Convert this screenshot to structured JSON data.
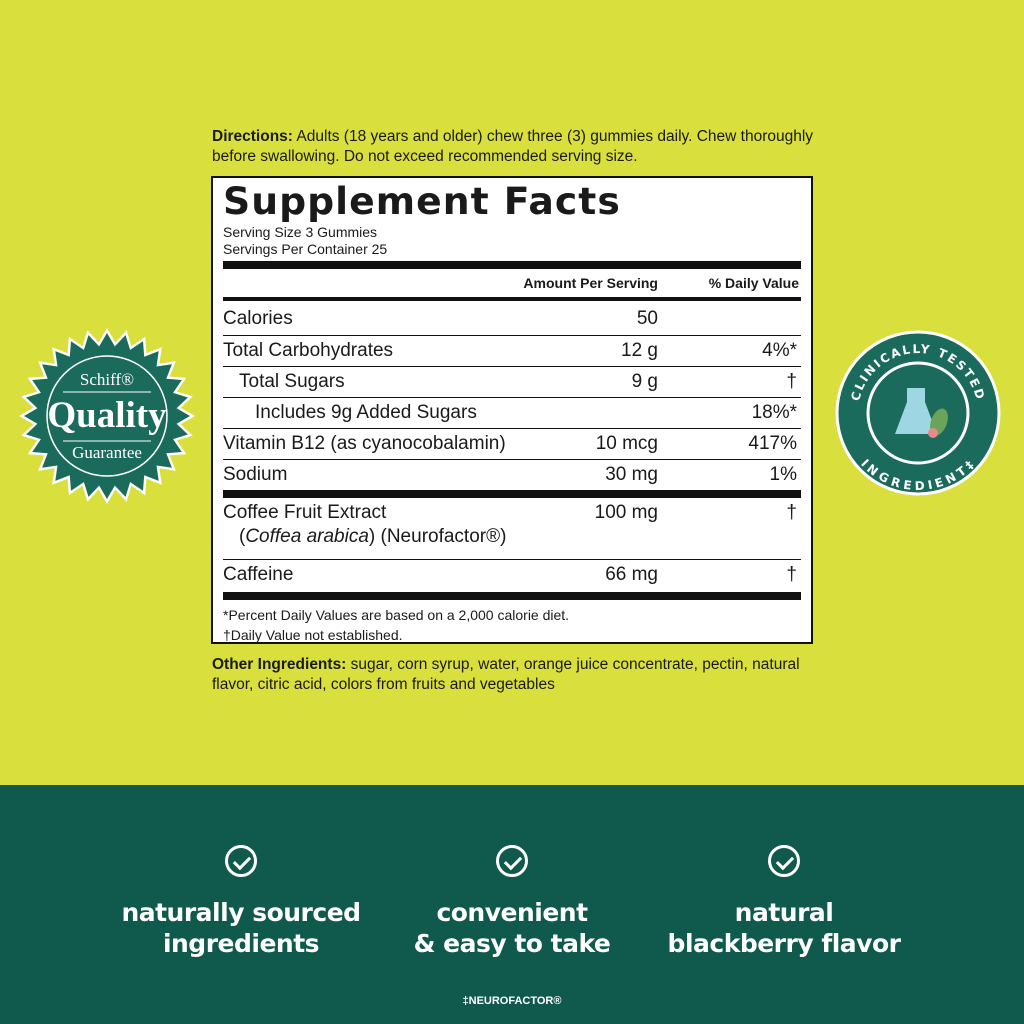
{
  "directions": {
    "label": "Directions:",
    "text": " Adults (18 years and older) chew three (3) gummies daily. Chew thoroughly before swallowing. Do not exceed recommended serving size."
  },
  "facts": {
    "title": "Supplement Facts",
    "serving_size": "Serving Size 3 Gummies",
    "servings_per_container": "Servings Per Container 25",
    "col_amount": "Amount Per Serving",
    "col_dv": "% Daily Value",
    "rows": [
      {
        "name": "Calories",
        "amount": "50",
        "dv": ""
      },
      {
        "name": "Total Carbohydrates",
        "amount": "12 g",
        "dv": "4%*"
      },
      {
        "name": "Total Sugars",
        "amount": "9 g",
        "dv": "†"
      },
      {
        "name": "Includes 9g Added Sugars",
        "amount": "",
        "dv": "18%*"
      },
      {
        "name": "Vitamin B12 (as cyanocobalamin)",
        "amount": "10 mcg",
        "dv": "417%"
      },
      {
        "name": "Sodium",
        "amount": "30 mg",
        "dv": "1%"
      },
      {
        "name": "Coffee Fruit Extract",
        "sub_italic": "Coffea arabica",
        "sub_rest": ") (Neurofactor®)",
        "amount": "100 mg",
        "dv": "†"
      },
      {
        "name": "Caffeine",
        "amount": "66 mg",
        "dv": "†"
      }
    ],
    "footnote1": "*Percent Daily Values are based on a 2,000 calorie diet.",
    "footnote2": "†Daily Value not established."
  },
  "other": {
    "label": "Other Ingredients:",
    "text": " sugar, corn syrup, water, orange juice concentrate, pectin, natural flavor, citric acid, colors from fruits and vegetables"
  },
  "badge_left": {
    "brand": "Schiff®",
    "main": "Quality",
    "sub": "Guarantee"
  },
  "badge_right": {
    "top": "CLINICALLY TESTED",
    "bottom": "INGREDIENT‡"
  },
  "features": [
    {
      "line1": "naturally sourced",
      "line2": "ingredients"
    },
    {
      "line1": "convenient",
      "line2": "& easy to take"
    },
    {
      "line1": "natural",
      "line2": "blackberry flavor"
    }
  ],
  "footnote": "‡NEUROFACTOR®",
  "colors": {
    "background": "#d9df3c",
    "band": "#0f5a4c",
    "badge": "#1b6b5c"
  }
}
